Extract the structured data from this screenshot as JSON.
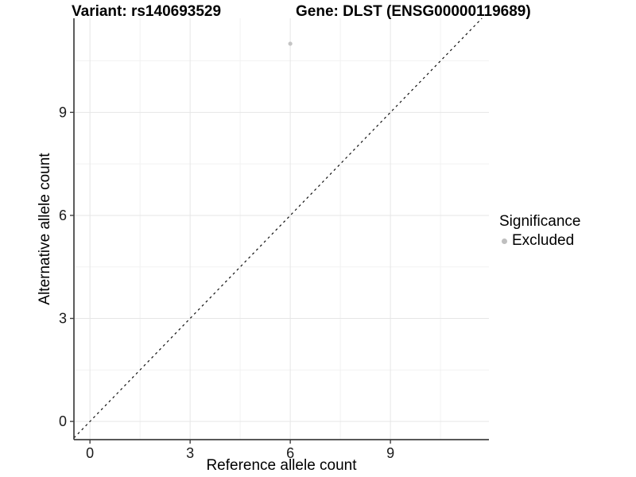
{
  "chart_data": {
    "type": "scatter",
    "title_left": "Variant: rs140693529",
    "title_right": "Gene: DLST (ENSG00000119689)",
    "xlabel": "Reference allele count",
    "ylabel": "Alternative allele count",
    "xlim": [
      -0.48,
      11.95
    ],
    "ylim": [
      -0.53,
      11.74
    ],
    "x_ticks": [
      0,
      3,
      6,
      9
    ],
    "y_ticks": [
      0,
      3,
      6,
      9
    ],
    "x_minor_ticks": [
      1.5,
      4.5,
      7.5,
      10.5
    ],
    "y_minor_ticks": [
      1.5,
      4.5,
      7.5,
      10.5
    ],
    "grid": "major+minor",
    "points": [
      {
        "x": 6,
        "y": 11,
        "significance": "Excluded"
      }
    ],
    "identity_line": {
      "equation": "y = x",
      "style": "dashed"
    },
    "legend": {
      "title": "Significance",
      "position": "right",
      "items": [
        {
          "label": "Excluded",
          "color": "#bfbfbf"
        }
      ]
    },
    "colors": {
      "point": "#c4c4c4",
      "grid_major": "#e6e6e6",
      "grid_minor": "#f2f2f2",
      "axis_line": "#404040",
      "tick_mark": "#404040",
      "dashed_line": "#111111",
      "background": "#ffffff"
    }
  }
}
